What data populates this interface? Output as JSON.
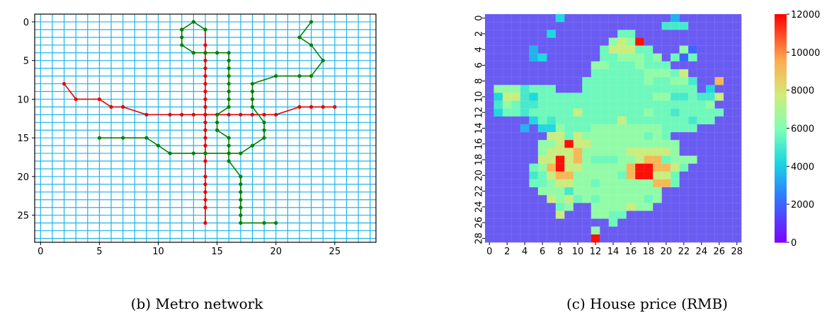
{
  "chart_data": [
    {
      "type": "line",
      "caption": "(b)  Metro network",
      "xlim": [
        -0.5,
        28.5
      ],
      "ylim": [
        28.5,
        -1
      ],
      "x_ticks": [
        0,
        5,
        10,
        15,
        20,
        25
      ],
      "y_ticks": [
        0,
        5,
        10,
        15,
        20,
        25
      ],
      "grid": true,
      "grid_color": "#1eb4e6",
      "series": [
        {
          "color": "#e60000",
          "points": [
            [
              2,
              8
            ],
            [
              3,
              10
            ],
            [
              5,
              10
            ],
            [
              6,
              11
            ],
            [
              7,
              11
            ],
            [
              9,
              12
            ],
            [
              11,
              12
            ],
            [
              12,
              12
            ],
            [
              13,
              12
            ],
            [
              14,
              12
            ],
            [
              15,
              12
            ],
            [
              16,
              12
            ],
            [
              17,
              12
            ],
            [
              18,
              12
            ],
            [
              19,
              12
            ],
            [
              20,
              12
            ],
            [
              22,
              11
            ],
            [
              23,
              11
            ],
            [
              24,
              11
            ],
            [
              25,
              11
            ]
          ]
        },
        {
          "color": "#e60000",
          "points": [
            [
              14,
              1
            ],
            [
              14,
              3
            ],
            [
              14,
              4
            ],
            [
              14,
              5
            ],
            [
              14,
              6
            ],
            [
              14,
              7
            ],
            [
              14,
              8
            ],
            [
              14,
              9
            ],
            [
              14,
              10
            ],
            [
              14,
              11
            ],
            [
              14,
              12
            ],
            [
              14,
              13
            ],
            [
              14,
              14
            ],
            [
              14,
              15
            ],
            [
              14,
              16
            ],
            [
              14,
              17
            ],
            [
              14,
              18
            ],
            [
              14,
              20
            ],
            [
              14,
              21
            ],
            [
              14,
              22
            ],
            [
              14,
              23
            ],
            [
              14,
              24
            ],
            [
              14,
              26
            ]
          ]
        },
        {
          "color": "#008000",
          "points": [
            [
              23,
              0
            ],
            [
              22,
              2
            ],
            [
              23,
              3
            ],
            [
              24,
              5
            ],
            [
              23,
              7
            ],
            [
              22,
              7
            ],
            [
              20,
              7
            ],
            [
              18,
              8
            ],
            [
              18,
              9
            ],
            [
              18,
              10
            ],
            [
              18,
              11
            ],
            [
              19,
              13
            ],
            [
              19,
              14
            ],
            [
              19,
              15
            ],
            [
              18,
              16
            ],
            [
              17,
              17
            ],
            [
              16,
              17
            ],
            [
              14,
              17
            ],
            [
              13,
              17
            ],
            [
              11,
              17
            ],
            [
              10,
              16
            ],
            [
              9,
              15
            ],
            [
              7,
              15
            ],
            [
              5,
              15
            ]
          ]
        },
        {
          "color": "#008000",
          "points": [
            [
              12,
              1
            ],
            [
              13,
              0
            ],
            [
              14,
              1
            ]
          ]
        },
        {
          "color": "#008000",
          "points": [
            [
              12,
              1
            ],
            [
              12,
              2
            ],
            [
              12,
              3
            ],
            [
              13,
              4
            ],
            [
              14,
              4
            ],
            [
              15,
              4
            ],
            [
              16,
              4
            ],
            [
              16,
              5
            ],
            [
              16,
              6
            ],
            [
              16,
              7
            ],
            [
              16,
              8
            ],
            [
              16,
              9
            ],
            [
              16,
              10
            ],
            [
              16,
              11
            ],
            [
              15,
              12
            ],
            [
              15,
              13
            ],
            [
              15,
              14
            ],
            [
              16,
              15
            ],
            [
              16,
              16
            ],
            [
              16,
              17
            ],
            [
              16,
              18
            ],
            [
              17,
              20
            ],
            [
              17,
              21
            ],
            [
              17,
              22
            ],
            [
              17,
              23
            ],
            [
              17,
              24
            ],
            [
              17,
              25
            ],
            [
              17,
              26
            ],
            [
              19,
              26
            ],
            [
              20,
              26
            ]
          ]
        }
      ]
    },
    {
      "type": "heatmap",
      "caption": "(c)  House price (RMB)",
      "x_ticks": [
        0,
        2,
        4,
        6,
        8,
        10,
        12,
        14,
        16,
        18,
        20,
        22,
        24,
        26,
        28
      ],
      "y_ticks": [
        0,
        2,
        4,
        6,
        8,
        10,
        12,
        14,
        16,
        18,
        20,
        22,
        24,
        26,
        28
      ],
      "colormap": "rainbow",
      "vmin": 0,
      "vmax": 12000,
      "colorbar_ticks": [
        0,
        2000,
        4000,
        6000,
        8000,
        10000,
        12000
      ],
      "rows": [
        "00000000300000000000020000000",
        "00000000000000000000444000000",
        "00000003000000055000000000000",
        "00000000000000676900000000000",
        "00000200000005777550006100000",
        "00000230000005566656051500000",
        "00000000000066555655500000000",
        "00000000000055555566657000000",
        "00000000000555555565566400800",
        "06664555000555555555555503000",
        "03774355555555555556644544700",
        "04654455555555555555555556000",
        "03554555557555555565545555500",
        "00000354555555575555555455000",
        "00002033655566666666555500000",
        "00000007757666666656500000000",
        "00000066797766666666660000000",
        "00000067778666667777760000000",
        "00000077978655566788566600000",
        "00000568977666668998875000000",
        "00000457886666658997750000000",
        "00000556776656666668850000000",
        "00000066646666666666000000000",
        "00000007675656666656000000000",
        "00000000560066667660000000000",
        "00000000700066550000000000000",
        "00000000000000500000000000000",
        "00000000000060000000000000000",
        "00000000000090000000000000000"
      ],
      "levels": [
        0,
        2000,
        3500,
        4300,
        5000,
        5700,
        6400,
        7600,
        9200,
        11800
      ]
    }
  ]
}
